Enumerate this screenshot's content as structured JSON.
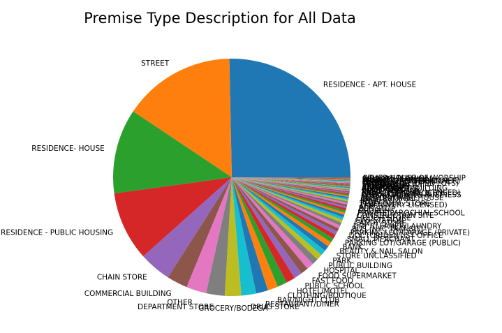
{
  "chart_data": {
    "type": "pie",
    "title": "Premise Type Description for All Data",
    "start_angle_deg": 0,
    "direction": "counterclockwise",
    "slices": [
      {
        "label": "RESIDENCE - APT. HOUSE",
        "value": 25.0,
        "color": "#1f77b4"
      },
      {
        "label": "STREET",
        "value": 15.1,
        "color": "#ff7f0e"
      },
      {
        "label": "RESIDENCE- HOUSE",
        "value": 11.4,
        "color": "#2ca02c"
      },
      {
        "label": "RESIDENCE - PUBLIC HOUSING",
        "value": 9.3,
        "color": "#d62728"
      },
      {
        "label": "CHAIN STORE",
        "value": 4.3,
        "color": "#9467bd"
      },
      {
        "label": "COMMERCIAL BUILDING",
        "value": 2.8,
        "color": "#8c564b"
      },
      {
        "label": "OTHER",
        "value": 2.7,
        "color": "#e377c2"
      },
      {
        "label": "DEPARTMENT STORE",
        "value": 2.5,
        "color": "#7f7f7f"
      },
      {
        "label": "GROCERY/BODEGA",
        "value": 2.2,
        "color": "#bcbd22"
      },
      {
        "label": "DRUG STORE",
        "value": 2.0,
        "color": "#17becf"
      },
      {
        "label": "RESTAURANT/DINER",
        "value": 1.6,
        "color": "#1f77b4"
      },
      {
        "label": "BAR/NIGHT CLUB",
        "value": 1.4,
        "color": "#ff7f0e"
      },
      {
        "label": "CLOTHING/BOUTIQUE",
        "value": 1.3,
        "color": "#2ca02c"
      },
      {
        "label": "HOTEL/MOTEL",
        "value": 1.2,
        "color": "#d62728"
      },
      {
        "label": "PUBLIC SCHOOL",
        "value": 1.1,
        "color": "#9467bd"
      },
      {
        "label": "FAST FOOD",
        "value": 1.0,
        "color": "#8c564b"
      },
      {
        "label": "FOOD SUPERMARKET",
        "value": 0.95,
        "color": "#e377c2"
      },
      {
        "label": "HOSPITAL",
        "value": 0.85,
        "color": "#7f7f7f"
      },
      {
        "label": "PUBLIC BUILDING",
        "value": 0.8,
        "color": "#bcbd22"
      },
      {
        "label": "PARK",
        "value": 0.75,
        "color": "#17becf"
      },
      {
        "label": "STORE UNCLASSIFIED",
        "value": 0.7,
        "color": "#1f77b4"
      },
      {
        "label": "BEAUTY & NAIL SALON",
        "value": 0.65,
        "color": "#ff7f0e"
      },
      {
        "label": "BANK",
        "value": 0.6,
        "color": "#2ca02c"
      },
      {
        "label": "PARKING LOT/GARAGE (PUBLIC)",
        "value": 0.55,
        "color": "#d62728"
      },
      {
        "label": "SMALL MERCHANT",
        "value": 0.5,
        "color": "#9467bd"
      },
      {
        "label": "DOCTOR/DENTIST OFFICE",
        "value": 0.45,
        "color": "#8c564b"
      },
      {
        "label": "PARKING LOT/GARAGE (PRIVATE)",
        "value": 0.45,
        "color": "#e377c2"
      },
      {
        "label": "BUS (NYC TRANSIT)",
        "value": 0.4,
        "color": "#7f7f7f"
      },
      {
        "label": "DRY CLEANER/LAUNDRY",
        "value": 0.4,
        "color": "#bcbd22"
      },
      {
        "label": "CANDY STORE",
        "value": 0.35,
        "color": "#17becf"
      },
      {
        "label": "GAS STATION",
        "value": 0.35,
        "color": "#1f77b4"
      },
      {
        "label": "LIQUOR STORE",
        "value": 0.3,
        "color": "#ff7f0e"
      },
      {
        "label": "CONSTRUCTION SITE",
        "value": 0.3,
        "color": "#2ca02c"
      },
      {
        "label": "PRIVATE/PAROCHIAL SCHOOL",
        "value": 0.3,
        "color": "#d62728"
      },
      {
        "label": "CHURCH",
        "value": 0.25,
        "color": "#9467bd"
      },
      {
        "label": "BUS STOP",
        "value": 0.25,
        "color": "#8c564b"
      },
      {
        "label": "ATM",
        "value": 0.25,
        "color": "#e377c2"
      },
      {
        "label": "TAXI (LIVERY LICENSED)",
        "value": 0.2,
        "color": "#7f7f7f"
      },
      {
        "label": "TELECOMM. STORE",
        "value": 0.2,
        "color": "#bcbd22"
      },
      {
        "label": "JEWELRY",
        "value": 0.2,
        "color": "#17becf"
      },
      {
        "label": "SHOE",
        "value": 0.2,
        "color": "#1f77b4"
      },
      {
        "label": "BUS TERMINAL",
        "value": 0.15,
        "color": "#ff7f0e"
      },
      {
        "label": "FACTORY/WAREHOUSE",
        "value": 0.15,
        "color": "#2ca02c"
      },
      {
        "label": "MARINA/PIER",
        "value": 0.15,
        "color": "#d62728"
      },
      {
        "label": "CHECK CASHING BUSINESS",
        "value": 0.15,
        "color": "#9467bd"
      },
      {
        "label": "GYM/FITNESS FACILITY",
        "value": 0.15,
        "color": "#8c564b"
      },
      {
        "label": "TAXI/LIVERY (UNLICENSED)",
        "value": 0.12,
        "color": "#e377c2"
      },
      {
        "label": "VARIETY STORE",
        "value": 0.12,
        "color": "#7f7f7f"
      },
      {
        "label": "LOAN COMPANY",
        "value": 0.12,
        "color": "#bcbd22"
      },
      {
        "label": "BOOK/CARD",
        "value": 0.1,
        "color": "#17becf"
      },
      {
        "label": "CEMETERY",
        "value": 0.1,
        "color": "#1f77b4"
      },
      {
        "label": "ABANDONED BUILDING",
        "value": 0.1,
        "color": "#ff7f0e"
      },
      {
        "label": "PHOTO/COPY",
        "value": 0.1,
        "color": "#2ca02c"
      },
      {
        "label": "SYNAGOGUE",
        "value": 0.1,
        "color": "#d62728"
      },
      {
        "label": "VIDEO STORE",
        "value": 0.1,
        "color": "#9467bd"
      },
      {
        "label": "STORAGE FACILITY",
        "value": 0.1,
        "color": "#8c564b"
      },
      {
        "label": "TRAMWAY",
        "value": 0.08,
        "color": "#e377c2"
      },
      {
        "label": "OPEN AREAS (OPEN LOTS)",
        "value": 0.08,
        "color": "#7f7f7f"
      },
      {
        "label": "MOSQUE",
        "value": 0.08,
        "color": "#bcbd22"
      },
      {
        "label": "TUNNEL",
        "value": 0.08,
        "color": "#17becf"
      },
      {
        "label": "FERRY/FERRY TERMINAL",
        "value": 0.08,
        "color": "#1f77b4"
      },
      {
        "label": "TRANSIT FACILITY (OTHER)",
        "value": 0.08,
        "color": "#ff7f0e"
      },
      {
        "label": "HIGHWAY/PARKWAY",
        "value": 0.08,
        "color": "#2ca02c"
      },
      {
        "label": "BRIDGE",
        "value": 0.08,
        "color": "#d62728"
      },
      {
        "label": "AIRPORT TERMINAL",
        "value": 0.08,
        "color": "#9467bd"
      },
      {
        "label": "OTHER HOUSE OF WORSHIP",
        "value": 0.08,
        "color": "#8c564b"
      }
    ]
  }
}
